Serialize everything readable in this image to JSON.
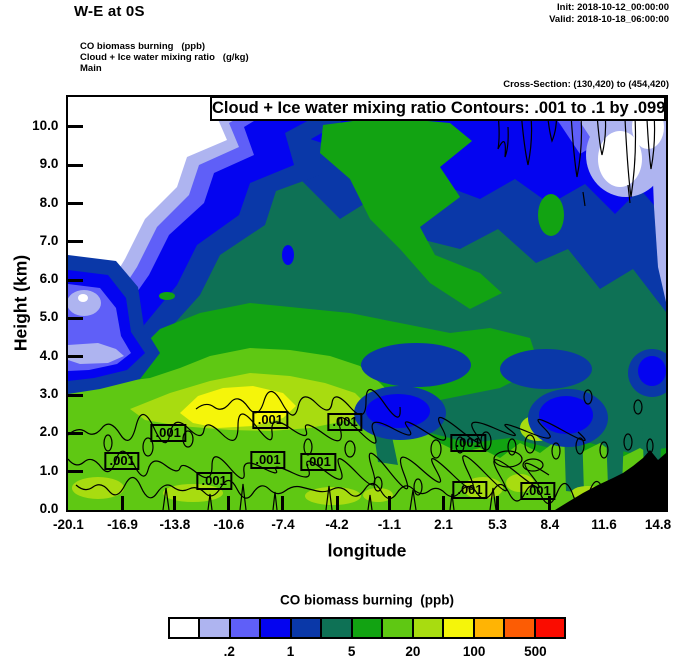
{
  "header": {
    "title": "W-E at 0S",
    "init_label": "Init: 2018-10-12_00:00:00",
    "valid_label": "Valid: 2018-10-18_06:00:00",
    "field_lines": {
      "fill": "CO biomass burning   (ppb)",
      "contour": "Cloud + Ice water mixing ratio   (g/kg)",
      "domain": "Main"
    },
    "cross_section": "Cross-Section: (130,420) to (454,420)"
  },
  "chart_data": {
    "type": "heatmap",
    "title_box": "Cloud + Ice water mixing ratio Contours: .001 to .1 by .099",
    "fill_field": "CO biomass burning (ppb)",
    "contour_field": "Cloud + Ice water mixing ratio (g/kg)",
    "contour_levels": {
      "from": ".001",
      "to": ".1",
      "by": ".099"
    },
    "x_axis": {
      "label": "longitude",
      "min": -20.1,
      "span": 35.37,
      "ticks": [
        "-20.1",
        "-16.9",
        "-13.8",
        "-10.6",
        "-7.4",
        "-4.2",
        "-1.1",
        "2.1",
        "5.3",
        "8.4",
        "11.6",
        "14.8"
      ]
    },
    "y_axis": {
      "label": "Height (km)",
      "top_km": 10.78,
      "ticks": [
        "0.0",
        "1.0",
        "2.0",
        "3.0",
        "4.0",
        "5.0",
        "6.0",
        "7.0",
        "8.0",
        "9.0",
        "10.0"
      ]
    },
    "contour_line_labels": [
      {
        "text": ".001",
        "x_pct": 9.0,
        "y_pct": 88.1
      },
      {
        "text": ".001",
        "x_pct": 16.7,
        "y_pct": 81.4
      },
      {
        "text": ".001",
        "x_pct": 24.4,
        "y_pct": 93.0
      },
      {
        "text": ".001",
        "x_pct": 33.8,
        "y_pct": 78.2
      },
      {
        "text": ".001",
        "x_pct": 46.3,
        "y_pct": 78.7
      },
      {
        "text": ".001",
        "x_pct": 33.4,
        "y_pct": 87.9
      },
      {
        "text": ".001",
        "x_pct": 41.8,
        "y_pct": 88.4
      },
      {
        "text": ".001",
        "x_pct": 66.9,
        "y_pct": 83.8
      },
      {
        "text": ".001",
        "x_pct": 67.2,
        "y_pct": 95.2
      },
      {
        "text": ".001",
        "x_pct": 78.6,
        "y_pct": 95.4
      }
    ],
    "colorbar": {
      "title": "CO biomass burning  (ppb)",
      "colors": [
        "#FFFFFF",
        "#AEB4F0",
        "#5F5FF8",
        "#0404F0",
        "#0A38A8",
        "#0E7155",
        "#12A312",
        "#5FC813",
        "#A8DC10",
        "#F5F50A",
        "#FFB404",
        "#FC5C04",
        "#FA0C00"
      ],
      "labels": [
        {
          "text": ".2",
          "boundary": 2
        },
        {
          "text": "1",
          "boundary": 4
        },
        {
          "text": "5",
          "boundary": 6
        },
        {
          "text": "20",
          "boundary": 8
        },
        {
          "text": "100",
          "boundary": 10
        },
        {
          "text": "500",
          "boundary": 12
        }
      ]
    }
  }
}
